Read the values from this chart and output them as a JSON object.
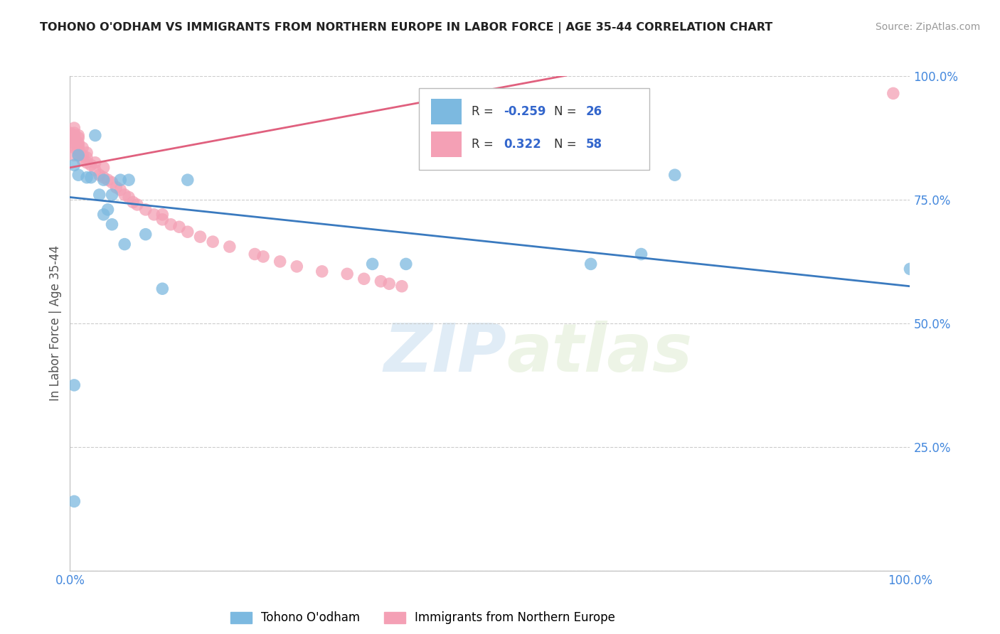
{
  "title": "TOHONO O'ODHAM VS IMMIGRANTS FROM NORTHERN EUROPE IN LABOR FORCE | AGE 35-44 CORRELATION CHART",
  "source": "Source: ZipAtlas.com",
  "ylabel": "In Labor Force | Age 35-44",
  "y_ticks": [
    0.0,
    0.25,
    0.5,
    0.75,
    1.0
  ],
  "y_tick_labels": [
    "",
    "25.0%",
    "50.0%",
    "75.0%",
    "100.0%"
  ],
  "x_ticks": [
    0.0,
    0.25,
    0.5,
    0.75,
    1.0
  ],
  "x_tick_labels": [
    "0.0%",
    "",
    "",
    "",
    "100.0%"
  ],
  "xlim": [
    0.0,
    1.0
  ],
  "ylim": [
    0.0,
    1.0
  ],
  "blue_R": -0.259,
  "blue_N": 26,
  "pink_R": 0.322,
  "pink_N": 58,
  "blue_color": "#7cb9e0",
  "pink_color": "#f4a0b5",
  "blue_line_color": "#3a7abf",
  "pink_line_color": "#e0607e",
  "legend_blue_label": "Tohono O'odham",
  "legend_pink_label": "Immigrants from Northern Europe",
  "watermark_zip": "ZIP",
  "watermark_atlas": "atlas",
  "blue_trend_x": [
    0.0,
    1.0
  ],
  "blue_trend_y": [
    0.755,
    0.575
  ],
  "pink_trend_x": [
    0.0,
    0.65
  ],
  "pink_trend_y": [
    0.815,
    1.02
  ],
  "blue_points_x": [
    0.005,
    0.005,
    0.005,
    0.01,
    0.01,
    0.02,
    0.025,
    0.03,
    0.035,
    0.04,
    0.04,
    0.045,
    0.05,
    0.05,
    0.06,
    0.065,
    0.07,
    0.09,
    0.11,
    0.14,
    0.36,
    0.4,
    0.62,
    0.68,
    0.72,
    1.0
  ],
  "blue_points_y": [
    0.375,
    0.14,
    0.82,
    0.8,
    0.84,
    0.795,
    0.795,
    0.88,
    0.76,
    0.79,
    0.72,
    0.73,
    0.76,
    0.7,
    0.79,
    0.66,
    0.79,
    0.68,
    0.57,
    0.79,
    0.62,
    0.62,
    0.62,
    0.64,
    0.8,
    0.61
  ],
  "pink_points_x": [
    0.0,
    0.0,
    0.0,
    0.005,
    0.005,
    0.005,
    0.005,
    0.005,
    0.005,
    0.005,
    0.01,
    0.01,
    0.01,
    0.01,
    0.01,
    0.01,
    0.01,
    0.015,
    0.015,
    0.015,
    0.02,
    0.02,
    0.02,
    0.025,
    0.03,
    0.03,
    0.035,
    0.04,
    0.04,
    0.045,
    0.05,
    0.055,
    0.06,
    0.065,
    0.07,
    0.075,
    0.08,
    0.09,
    0.1,
    0.11,
    0.11,
    0.12,
    0.13,
    0.14,
    0.155,
    0.17,
    0.19,
    0.22,
    0.23,
    0.25,
    0.27,
    0.3,
    0.33,
    0.35,
    0.37,
    0.38,
    0.395,
    0.98
  ],
  "pink_points_y": [
    0.875,
    0.86,
    0.885,
    0.84,
    0.855,
    0.865,
    0.875,
    0.88,
    0.885,
    0.895,
    0.84,
    0.85,
    0.855,
    0.86,
    0.865,
    0.875,
    0.88,
    0.83,
    0.84,
    0.855,
    0.825,
    0.835,
    0.845,
    0.82,
    0.81,
    0.825,
    0.8,
    0.795,
    0.815,
    0.79,
    0.785,
    0.775,
    0.77,
    0.76,
    0.755,
    0.745,
    0.74,
    0.73,
    0.72,
    0.71,
    0.72,
    0.7,
    0.695,
    0.685,
    0.675,
    0.665,
    0.655,
    0.64,
    0.635,
    0.625,
    0.615,
    0.605,
    0.6,
    0.59,
    0.585,
    0.58,
    0.575,
    0.965
  ]
}
